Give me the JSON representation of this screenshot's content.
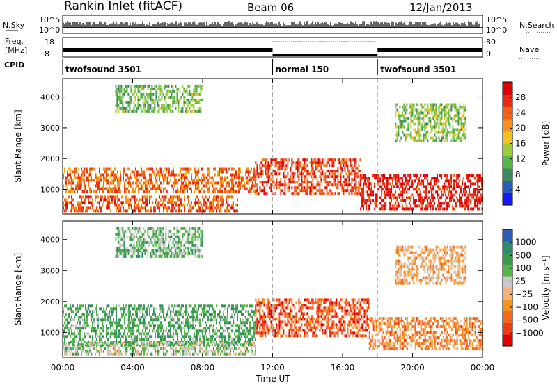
{
  "header": {
    "station": "Rankin Inlet (fitACF)",
    "beam": "Beam 06",
    "date": "12/Jan/2013"
  },
  "nsky_panel": {
    "left_label": "N.Sky",
    "right_label": "N.Search",
    "ticks": [
      "10^5",
      "10^0"
    ]
  },
  "freq_panel": {
    "left_label_line1": "Freq.",
    "left_label_line2": "[MHz]",
    "left_ticks": [
      "18",
      "8"
    ],
    "right_label": "Nave",
    "right_ticks": [
      "80",
      "0"
    ]
  },
  "cpid_panel": {
    "label": "CPID",
    "segments": [
      {
        "name": "twofsound",
        "id": "3501",
        "start": "00:00",
        "end": "12:00"
      },
      {
        "name": "normal",
        "id": "150",
        "start": "12:00",
        "end": "18:00"
      },
      {
        "name": "twofsound",
        "id": "3501",
        "start": "18:00",
        "end": "24:00"
      }
    ]
  },
  "chart_data": [
    {
      "type": "heatmap",
      "title": "",
      "xlabel": "Time UT",
      "ylabel": "Slant Range [km]",
      "x_ticks": [
        "00:00",
        "04:00",
        "08:00",
        "12:00",
        "16:00",
        "20:00",
        "00:00"
      ],
      "y_ticks": [
        1000,
        2000,
        3000,
        4000
      ],
      "ylim": [
        200,
        4600
      ],
      "colorbar": {
        "label": "Power [dB]",
        "ticks": [
          "4",
          "8",
          "12",
          "16",
          "20",
          "24",
          "28"
        ],
        "min": 0,
        "max": 32,
        "colors": [
          "#1818ff",
          "#2a5db8",
          "#3e8a60",
          "#55b845",
          "#9ccc3a",
          "#f0c11f",
          "#f7921b",
          "#f26018",
          "#ec2a13",
          "#e00000"
        ]
      },
      "scatter_bands": [
        {
          "from_h": 0,
          "to_h": 11,
          "from_km": 900,
          "to_km": 1700,
          "level": 0.75
        },
        {
          "from_h": 11,
          "to_h": 17,
          "from_km": 900,
          "to_km": 2000,
          "level": 0.85
        },
        {
          "from_h": 17,
          "to_h": 24,
          "from_km": 400,
          "to_km": 1500,
          "level": 0.95
        },
        {
          "from_h": 0,
          "to_h": 10,
          "from_km": 300,
          "to_km": 800,
          "level": 0.8
        },
        {
          "from_h": 3,
          "to_h": 8,
          "from_km": 3500,
          "to_km": 4400,
          "level": 0.35
        },
        {
          "from_h": 19,
          "to_h": 23,
          "from_km": 2600,
          "to_km": 3800,
          "level": 0.4
        }
      ]
    },
    {
      "type": "heatmap",
      "title": "",
      "xlabel": "Time UT",
      "ylabel": "Slant Range [km]",
      "x_ticks": [
        "00:00",
        "04:00",
        "08:00",
        "12:00",
        "16:00",
        "20:00",
        "00:00"
      ],
      "y_ticks": [
        1000,
        2000,
        3000,
        4000
      ],
      "ylim": [
        200,
        4600
      ],
      "colorbar": {
        "label": "Velocity [m s⁻¹]",
        "ticks": [
          "1000",
          "500",
          "100",
          "25",
          "−25",
          "−100",
          "−500",
          "−1000"
        ],
        "min": -1000,
        "max": 1000,
        "colors": [
          "#e00000",
          "#f23a12",
          "#f7671b",
          "#f7921b",
          "#f5b07a",
          "#c8c8c8",
          "#55b845",
          "#3a9a50",
          "#2e8c6c",
          "#2a5db8"
        ]
      },
      "scatter_bands": [
        {
          "from_h": 0,
          "to_h": 11,
          "from_km": 600,
          "to_km": 1900,
          "level": 0.72
        },
        {
          "from_h": 11,
          "to_h": 17.5,
          "from_km": 900,
          "to_km": 2100,
          "level": 0.15
        },
        {
          "from_h": 17.5,
          "to_h": 24,
          "from_km": 500,
          "to_km": 1500,
          "level": 0.3
        },
        {
          "from_h": 0,
          "to_h": 11,
          "from_km": 300,
          "to_km": 700,
          "level": 0.6
        },
        {
          "from_h": 3,
          "to_h": 8,
          "from_km": 3500,
          "to_km": 4400,
          "level": 0.7
        },
        {
          "from_h": 19,
          "to_h": 23,
          "from_km": 2600,
          "to_km": 3800,
          "level": 0.4
        }
      ]
    }
  ]
}
